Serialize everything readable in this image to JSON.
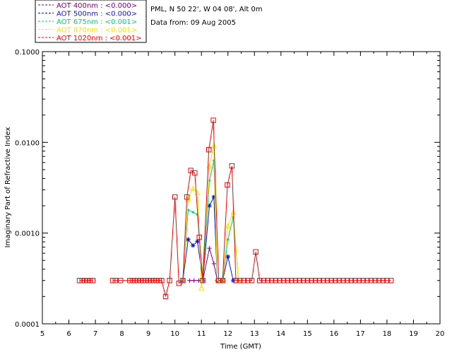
{
  "chart_data": {
    "type": "line",
    "site_text": "PML, N 50 22', W 04 08', Alt 0m",
    "date_text": "Data from: 09 Aug 2005",
    "xlabel": "Time (GMT)",
    "ylabel": "Imaginary Part of Refractive Index",
    "xlim": [
      5,
      20
    ],
    "ylim": [
      0.0001,
      0.1
    ],
    "y_scale": "log",
    "x_ticks": [
      "5",
      "6",
      "7",
      "8",
      "9",
      "10",
      "11",
      "12",
      "13",
      "14",
      "15",
      "16",
      "17",
      "18",
      "19",
      "20"
    ],
    "y_ticks": [
      {
        "value": 0.1,
        "label": "0.1000"
      },
      {
        "value": 0.01,
        "label": "0.0100"
      },
      {
        "value": 0.001,
        "label": "0.0010"
      },
      {
        "value": 0.0001,
        "label": "0.0001"
      }
    ],
    "legend_position": "top-left",
    "series": [
      {
        "name": "AOT  400nm : <0.000>",
        "color": "#800080",
        "marker": "plus",
        "points": [
          [
            10.55,
            0.0003
          ],
          [
            10.72,
            0.0003
          ],
          [
            10.9,
            0.0003
          ],
          [
            11.05,
            0.0003
          ],
          [
            11.3,
            0.00068
          ],
          [
            11.47,
            0.00046
          ],
          [
            11.6,
            0.0003
          ]
        ]
      },
      {
        "name": "AOT  500nm : <0.000>",
        "color": "#1010cc",
        "marker": "star",
        "points": [
          [
            10.3,
            0.0003
          ],
          [
            10.5,
            0.00085
          ],
          [
            10.68,
            0.00073
          ],
          [
            10.85,
            0.00081
          ],
          [
            11.05,
            0.0003
          ],
          [
            11.3,
            0.002
          ],
          [
            11.47,
            0.0025
          ],
          [
            11.6,
            0.0003
          ],
          [
            11.8,
            0.0003
          ],
          [
            12.0,
            0.00055
          ],
          [
            12.2,
            0.0003
          ]
        ]
      },
      {
        "name": "AOT  675nm : <0.001>",
        "color": "#00d070",
        "marker": "dot",
        "points": [
          [
            10.3,
            0.0003
          ],
          [
            10.5,
            0.0018
          ],
          [
            10.68,
            0.0017
          ],
          [
            10.85,
            0.0016
          ],
          [
            11.05,
            0.0003
          ],
          [
            11.3,
            0.0038
          ],
          [
            11.47,
            0.0063
          ],
          [
            11.6,
            0.0003
          ],
          [
            11.8,
            0.0003
          ],
          [
            12.0,
            0.00085
          ],
          [
            12.2,
            0.0015
          ],
          [
            12.4,
            0.0003
          ]
        ]
      },
      {
        "name": "AOT  870nm : <0.001>",
        "color": "#ffe000",
        "marker": "triangle",
        "points": [
          [
            10.3,
            0.0003
          ],
          [
            10.5,
            0.0024
          ],
          [
            10.68,
            0.0031
          ],
          [
            10.85,
            0.0028
          ],
          [
            11.0,
            0.00025
          ],
          [
            11.3,
            0.0055
          ],
          [
            11.47,
            0.0092
          ],
          [
            11.6,
            0.0003
          ],
          [
            11.8,
            0.0003
          ],
          [
            12.0,
            0.0012
          ],
          [
            12.2,
            0.0017
          ],
          [
            12.4,
            0.0003
          ]
        ]
      },
      {
        "name": "AOT 1020nm : <0.001>",
        "color": "#ff0000",
        "marker": "square",
        "points": [
          [
            6.4,
            0.0003
          ],
          [
            6.5,
            0.0003
          ],
          [
            6.6,
            0.0003
          ],
          [
            6.7,
            0.0003
          ],
          [
            6.8,
            0.0003
          ],
          [
            6.9,
            0.0003
          ],
          [
            7.65,
            0.0003
          ],
          [
            7.75,
            0.0003
          ],
          [
            7.95,
            0.0003
          ],
          [
            8.3,
            0.0003
          ],
          [
            8.4,
            0.0003
          ],
          [
            8.5,
            0.0003
          ],
          [
            8.6,
            0.0003
          ],
          [
            8.7,
            0.0003
          ],
          [
            8.8,
            0.0003
          ],
          [
            8.9,
            0.0003
          ],
          [
            9.0,
            0.0003
          ],
          [
            9.1,
            0.0003
          ],
          [
            9.2,
            0.0003
          ],
          [
            9.3,
            0.0003
          ],
          [
            9.4,
            0.0003
          ],
          [
            9.5,
            0.0003
          ],
          [
            9.65,
            0.0002
          ],
          [
            9.8,
            0.0003
          ],
          [
            10.0,
            0.0025
          ],
          [
            10.15,
            0.00028
          ],
          [
            10.3,
            0.0003
          ],
          [
            10.45,
            0.0025
          ],
          [
            10.6,
            0.0049
          ],
          [
            10.75,
            0.0046
          ],
          [
            10.92,
            0.0009
          ],
          [
            11.05,
            0.0003
          ],
          [
            11.28,
            0.0083
          ],
          [
            11.45,
            0.0175
          ],
          [
            11.65,
            0.0003
          ],
          [
            11.8,
            0.0003
          ],
          [
            11.98,
            0.0034
          ],
          [
            12.15,
            0.0055
          ],
          [
            12.3,
            0.0003
          ],
          [
            12.45,
            0.0003
          ],
          [
            12.6,
            0.0003
          ],
          [
            12.75,
            0.0003
          ],
          [
            12.9,
            0.0003
          ],
          [
            13.05,
            0.00062
          ],
          [
            13.2,
            0.0003
          ],
          [
            13.35,
            0.0003
          ],
          [
            13.5,
            0.0003
          ],
          [
            13.65,
            0.0003
          ],
          [
            13.8,
            0.0003
          ],
          [
            13.95,
            0.0003
          ],
          [
            14.1,
            0.0003
          ],
          [
            14.25,
            0.0003
          ],
          [
            14.4,
            0.0003
          ],
          [
            14.55,
            0.0003
          ],
          [
            14.7,
            0.0003
          ],
          [
            14.85,
            0.0003
          ],
          [
            15.0,
            0.0003
          ],
          [
            15.15,
            0.0003
          ],
          [
            15.3,
            0.0003
          ],
          [
            15.45,
            0.0003
          ],
          [
            15.6,
            0.0003
          ],
          [
            15.75,
            0.0003
          ],
          [
            15.9,
            0.0003
          ],
          [
            16.05,
            0.0003
          ],
          [
            16.2,
            0.0003
          ],
          [
            16.35,
            0.0003
          ],
          [
            16.5,
            0.0003
          ],
          [
            16.65,
            0.0003
          ],
          [
            16.8,
            0.0003
          ],
          [
            16.95,
            0.0003
          ],
          [
            17.1,
            0.0003
          ],
          [
            17.25,
            0.0003
          ],
          [
            17.4,
            0.0003
          ],
          [
            17.55,
            0.0003
          ],
          [
            17.7,
            0.0003
          ],
          [
            17.85,
            0.0003
          ],
          [
            18.0,
            0.0003
          ],
          [
            18.15,
            0.0003
          ]
        ]
      }
    ]
  }
}
